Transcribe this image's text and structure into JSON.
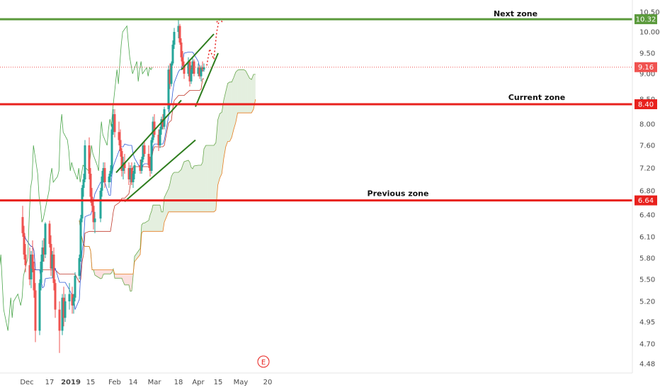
{
  "chart_data": {
    "type": "candlestick",
    "y_axis_ticks": [
      "10.50",
      "10.00",
      "9.50",
      "9.00",
      "8.50",
      "8.00",
      "7.60",
      "7.20",
      "6.80",
      "6.40",
      "6.10",
      "5.80",
      "5.50",
      "5.20",
      "4.95",
      "4.70",
      "4.48"
    ],
    "x_axis_ticks": [
      "Dec",
      "17",
      "2019",
      "15",
      "Feb",
      "14",
      "Mar",
      "18",
      "Apr",
      "15",
      "May",
      "20"
    ],
    "horizontal_levels": [
      {
        "name": "Next zone",
        "label": "Next zone",
        "price_badge": "10.32",
        "value": 10.32,
        "color": "#5b9a3c"
      },
      {
        "name": "Current zone",
        "label": "Current zone",
        "price_badge": "8.40",
        "value": 8.4,
        "color": "#e8211d"
      },
      {
        "name": "Previous zone",
        "label": "Previous zone",
        "price_badge": "6.64",
        "value": 6.64,
        "color": "#e8211d"
      }
    ],
    "last_price": {
      "price_badge": "9.16",
      "value": 9.16,
      "color": "#f05350"
    },
    "earnings_marker": "E",
    "channels": [
      {
        "name": "channel-feb-mar",
        "upper": [
          [
            "Feb 2",
            7.12
          ],
          [
            "Mar 20",
            8.48
          ]
        ],
        "lower": [
          [
            "Feb 8",
            6.62
          ],
          [
            "Mar 30",
            7.7
          ]
        ]
      },
      {
        "name": "channel-mar-apr",
        "upper": [
          [
            "Mar 20",
            9.1
          ],
          [
            "Apr 12",
            9.95
          ]
        ],
        "lower": [
          [
            "Mar 30",
            8.35
          ],
          [
            "Apr 15",
            9.5
          ]
        ]
      }
    ],
    "projection": {
      "name": "projected-path",
      "points": [
        [
          "Apr 7",
          9.2
        ],
        [
          "Apr 9",
          9.6
        ],
        [
          "Apr 12",
          9.35
        ],
        [
          "Apr 14",
          10.0
        ],
        [
          "Apr 16",
          10.35
        ]
      ],
      "color": "#e8211d"
    },
    "colors": {
      "up": "#26a69a",
      "down": "#ef5350",
      "tenkan": "#2f5bd6",
      "kijun": "#c0392b",
      "chikou": "#4ca64c",
      "span_a": "#6aa84f",
      "span_b": "#e67e22"
    },
    "candles": [
      {
        "d": "Nov 28",
        "o": 6.37,
        "h": 6.55,
        "l": 6.1,
        "c": 6.15
      },
      {
        "d": "Nov 29",
        "o": 6.15,
        "h": 6.25,
        "l": 5.78,
        "c": 5.85
      },
      {
        "d": "Nov 30",
        "o": 5.85,
        "h": 6.0,
        "l": 5.6,
        "c": 5.7
      },
      {
        "d": "Dec 3",
        "o": 5.7,
        "h": 5.95,
        "l": 5.42,
        "c": 5.5
      },
      {
        "d": "Dec 4",
        "o": 5.5,
        "h": 5.9,
        "l": 5.38,
        "c": 5.85
      },
      {
        "d": "Dec 5",
        "o": 5.85,
        "h": 6.05,
        "l": 5.6,
        "c": 5.65
      },
      {
        "d": "Dec 6",
        "o": 5.65,
        "h": 5.75,
        "l": 5.25,
        "c": 5.35
      },
      {
        "d": "Dec 7",
        "o": 5.35,
        "h": 5.45,
        "l": 4.72,
        "c": 4.85
      },
      {
        "d": "Dec 10",
        "o": 4.85,
        "h": 5.5,
        "l": 4.8,
        "c": 5.45
      },
      {
        "d": "Dec 11",
        "o": 5.45,
        "h": 5.85,
        "l": 5.35,
        "c": 5.75
      },
      {
        "d": "Dec 12",
        "o": 5.75,
        "h": 6.05,
        "l": 5.6,
        "c": 5.95
      },
      {
        "d": "Dec 13",
        "o": 5.95,
        "h": 6.08,
        "l": 5.75,
        "c": 5.85
      },
      {
        "d": "Dec 14",
        "o": 5.85,
        "h": 6.3,
        "l": 5.8,
        "c": 6.28
      },
      {
        "d": "Dec 17",
        "o": 6.28,
        "h": 6.32,
        "l": 5.95,
        "c": 6.0
      },
      {
        "d": "Dec 18",
        "o": 6.0,
        "h": 6.12,
        "l": 5.55,
        "c": 5.65
      },
      {
        "d": "Dec 19",
        "o": 5.65,
        "h": 5.9,
        "l": 5.52,
        "c": 5.85
      },
      {
        "d": "Dec 20",
        "o": 5.85,
        "h": 5.95,
        "l": 5.35,
        "c": 5.45
      },
      {
        "d": "Dec 21",
        "o": 5.45,
        "h": 5.5,
        "l": 5.0,
        "c": 5.1
      },
      {
        "d": "Dec 24",
        "o": 5.1,
        "h": 5.2,
        "l": 4.6,
        "c": 4.85
      },
      {
        "d": "Dec 26",
        "o": 4.85,
        "h": 5.3,
        "l": 4.8,
        "c": 5.25
      },
      {
        "d": "Dec 27",
        "o": 5.25,
        "h": 5.4,
        "l": 4.9,
        "c": 5.0
      },
      {
        "d": "Dec 28",
        "o": 5.0,
        "h": 5.3,
        "l": 4.95,
        "c": 5.2
      },
      {
        "d": "Dec 31",
        "o": 5.2,
        "h": 5.45,
        "l": 5.1,
        "c": 5.3
      },
      {
        "d": "Jan 2",
        "o": 5.3,
        "h": 5.4,
        "l": 5.05,
        "c": 5.15
      },
      {
        "d": "Jan 3",
        "o": 5.15,
        "h": 5.3,
        "l": 5.05,
        "c": 5.25
      },
      {
        "d": "Jan 4",
        "o": 5.25,
        "h": 5.6,
        "l": 5.2,
        "c": 5.55
      },
      {
        "d": "Jan 7",
        "o": 5.55,
        "h": 5.85,
        "l": 5.5,
        "c": 5.8
      },
      {
        "d": "Jan 8",
        "o": 5.8,
        "h": 6.4,
        "l": 5.75,
        "c": 6.35
      },
      {
        "d": "Jan 9",
        "o": 6.35,
        "h": 6.9,
        "l": 6.3,
        "c": 6.85
      },
      {
        "d": "Jan 10",
        "o": 6.85,
        "h": 7.1,
        "l": 6.7,
        "c": 7.0
      },
      {
        "d": "Jan 11",
        "o": 7.0,
        "h": 7.7,
        "l": 6.95,
        "c": 7.6
      },
      {
        "d": "Jan 14",
        "o": 7.6,
        "h": 7.75,
        "l": 7.0,
        "c": 7.1
      },
      {
        "d": "Jan 15",
        "o": 7.1,
        "h": 7.2,
        "l": 6.6,
        "c": 6.7
      },
      {
        "d": "Jan 16",
        "o": 6.7,
        "h": 6.85,
        "l": 6.45,
        "c": 6.55
      },
      {
        "d": "Jan 17",
        "o": 6.55,
        "h": 6.65,
        "l": 6.2,
        "c": 6.3
      },
      {
        "d": "Jan 18",
        "o": 6.3,
        "h": 6.45,
        "l": 6.15,
        "c": 6.35
      },
      {
        "d": "Jan 22",
        "o": 6.35,
        "h": 6.85,
        "l": 6.3,
        "c": 6.8
      },
      {
        "d": "Jan 23",
        "o": 6.8,
        "h": 7.15,
        "l": 6.7,
        "c": 7.05
      },
      {
        "d": "Jan 24",
        "o": 7.05,
        "h": 7.3,
        "l": 6.95,
        "c": 7.2
      },
      {
        "d": "Jan 25",
        "o": 7.2,
        "h": 7.3,
        "l": 6.85,
        "c": 6.95
      },
      {
        "d": "Jan 28",
        "o": 6.95,
        "h": 7.1,
        "l": 6.85,
        "c": 7.05
      },
      {
        "d": "Jan 29",
        "o": 7.05,
        "h": 7.25,
        "l": 6.95,
        "c": 7.15
      },
      {
        "d": "Jan 30",
        "o": 7.15,
        "h": 8.0,
        "l": 7.1,
        "c": 7.9
      },
      {
        "d": "Jan 31",
        "o": 7.9,
        "h": 8.3,
        "l": 7.8,
        "c": 8.2
      },
      {
        "d": "Feb 1",
        "o": 8.2,
        "h": 8.3,
        "l": 7.75,
        "c": 7.85
      },
      {
        "d": "Feb 4",
        "o": 7.85,
        "h": 8.05,
        "l": 7.6,
        "c": 7.7
      },
      {
        "d": "Feb 5",
        "o": 7.7,
        "h": 7.9,
        "l": 7.4,
        "c": 7.5
      },
      {
        "d": "Feb 6",
        "o": 7.5,
        "h": 7.55,
        "l": 7.05,
        "c": 7.15
      },
      {
        "d": "Feb 7",
        "o": 7.15,
        "h": 7.4,
        "l": 7.0,
        "c": 7.3
      },
      {
        "d": "Feb 8",
        "o": 7.3,
        "h": 7.45,
        "l": 7.1,
        "c": 7.2
      },
      {
        "d": "Feb 11",
        "o": 7.2,
        "h": 7.3,
        "l": 6.9,
        "c": 7.0
      },
      {
        "d": "Feb 12",
        "o": 7.0,
        "h": 7.25,
        "l": 6.95,
        "c": 7.2
      },
      {
        "d": "Feb 13",
        "o": 7.2,
        "h": 7.3,
        "l": 6.9,
        "c": 6.95
      },
      {
        "d": "Feb 14",
        "o": 6.95,
        "h": 7.15,
        "l": 6.85,
        "c": 7.1
      },
      {
        "d": "Feb 15",
        "o": 7.1,
        "h": 7.3,
        "l": 7.0,
        "c": 7.25
      },
      {
        "d": "Feb 19",
        "o": 7.25,
        "h": 7.35,
        "l": 7.1,
        "c": 7.15
      },
      {
        "d": "Feb 20",
        "o": 7.15,
        "h": 7.4,
        "l": 7.1,
        "c": 7.35
      },
      {
        "d": "Feb 21",
        "o": 7.35,
        "h": 7.65,
        "l": 7.3,
        "c": 7.6
      },
      {
        "d": "Feb 22",
        "o": 7.6,
        "h": 7.7,
        "l": 7.4,
        "c": 7.45
      },
      {
        "d": "Feb 25",
        "o": 7.45,
        "h": 7.6,
        "l": 7.2,
        "c": 7.25
      },
      {
        "d": "Feb 26",
        "o": 7.25,
        "h": 7.4,
        "l": 7.05,
        "c": 7.15
      },
      {
        "d": "Feb 27",
        "o": 7.15,
        "h": 7.75,
        "l": 7.1,
        "c": 7.7
      },
      {
        "d": "Feb 28",
        "o": 7.7,
        "h": 8.15,
        "l": 7.65,
        "c": 8.05
      },
      {
        "d": "Mar 1",
        "o": 8.05,
        "h": 8.2,
        "l": 7.75,
        "c": 7.8
      },
      {
        "d": "Mar 4",
        "o": 7.8,
        "h": 7.9,
        "l": 7.5,
        "c": 7.6
      },
      {
        "d": "Mar 5",
        "o": 7.6,
        "h": 7.95,
        "l": 7.55,
        "c": 7.9
      },
      {
        "d": "Mar 6",
        "o": 7.9,
        "h": 8.15,
        "l": 7.8,
        "c": 8.1
      },
      {
        "d": "Mar 7",
        "o": 8.1,
        "h": 8.2,
        "l": 7.9,
        "c": 7.95
      },
      {
        "d": "Mar 8",
        "o": 7.95,
        "h": 8.35,
        "l": 7.9,
        "c": 8.3
      },
      {
        "d": "Mar 11",
        "o": 8.3,
        "h": 9.2,
        "l": 8.25,
        "c": 9.1
      },
      {
        "d": "Mar 12",
        "o": 9.1,
        "h": 9.25,
        "l": 8.7,
        "c": 8.8
      },
      {
        "d": "Mar 13",
        "o": 8.8,
        "h": 9.3,
        "l": 8.75,
        "c": 9.25
      },
      {
        "d": "Mar 14",
        "o": 9.25,
        "h": 9.8,
        "l": 9.2,
        "c": 9.7
      },
      {
        "d": "Mar 15",
        "o": 9.7,
        "h": 10.1,
        "l": 9.6,
        "c": 10.0
      },
      {
        "d": "Mar 18",
        "o": 10.0,
        "h": 10.3,
        "l": 9.85,
        "c": 10.15
      },
      {
        "d": "Mar 19",
        "o": 10.15,
        "h": 10.2,
        "l": 9.7,
        "c": 9.75
      },
      {
        "d": "Mar 20",
        "o": 9.75,
        "h": 9.85,
        "l": 9.3,
        "c": 9.4
      },
      {
        "d": "Mar 21",
        "o": 9.4,
        "h": 9.55,
        "l": 9.1,
        "c": 9.2
      },
      {
        "d": "Mar 22",
        "o": 9.2,
        "h": 9.3,
        "l": 8.9,
        "c": 9.0
      },
      {
        "d": "Mar 25",
        "o": 9.0,
        "h": 9.4,
        "l": 8.95,
        "c": 9.3
      },
      {
        "d": "Mar 26",
        "o": 9.3,
        "h": 9.35,
        "l": 8.75,
        "c": 8.85
      },
      {
        "d": "Mar 27",
        "o": 8.85,
        "h": 9.2,
        "l": 8.8,
        "c": 9.1
      },
      {
        "d": "Mar 28",
        "o": 9.1,
        "h": 9.4,
        "l": 9.0,
        "c": 9.3
      },
      {
        "d": "Mar 29",
        "o": 9.3,
        "h": 9.35,
        "l": 8.95,
        "c": 9.0
      },
      {
        "d": "Apr 1",
        "o": 9.0,
        "h": 9.25,
        "l": 8.95,
        "c": 9.15
      },
      {
        "d": "Apr 2",
        "o": 9.15,
        "h": 9.2,
        "l": 8.9,
        "c": 8.95
      },
      {
        "d": "Apr 3",
        "o": 8.95,
        "h": 9.2,
        "l": 8.85,
        "c": 9.15
      },
      {
        "d": "Apr 4",
        "o": 9.15,
        "h": 9.3,
        "l": 9.05,
        "c": 9.1
      },
      {
        "d": "Apr 5",
        "o": 9.1,
        "h": 9.25,
        "l": 9.05,
        "c": 9.16
      }
    ]
  }
}
